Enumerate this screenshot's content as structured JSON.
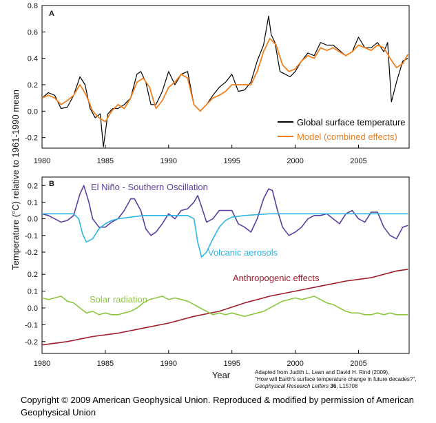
{
  "chart_data": [
    {
      "panel": "A",
      "type": "line",
      "ylabel": "Temperature (°C) relative to 1961-1990 mean",
      "xlabel": "",
      "xlim": [
        1980,
        2009
      ],
      "ylim": [
        -0.28,
        0.8
      ],
      "xticks": [
        1980,
        1985,
        1990,
        1995,
        2000,
        2005
      ],
      "yticks": [
        -0.2,
        0.0,
        0.2,
        0.4,
        0.6,
        0.8
      ],
      "ytick_labels": [
        "-0.2",
        "0.0",
        "0.2",
        "0.4",
        "0.6",
        "0.8"
      ],
      "legend_position": "bottom-right",
      "series": [
        {
          "name": "Global surface temperature",
          "color": "#000000",
          "x": [
            1980.0,
            1980.5,
            1981.0,
            1981.5,
            1982.0,
            1982.5,
            1983.0,
            1983.4,
            1983.8,
            1984.2,
            1984.6,
            1984.85,
            1985.2,
            1985.6,
            1986.0,
            1986.5,
            1987.0,
            1987.5,
            1987.8,
            1988.2,
            1988.6,
            1989.0,
            1989.5,
            1990.0,
            1990.5,
            1991.0,
            1991.5,
            1992.0,
            1992.5,
            1993.0,
            1993.5,
            1994.0,
            1994.5,
            1995.0,
            1995.5,
            1996.0,
            1996.5,
            1997.0,
            1997.5,
            1997.9,
            1998.1,
            1998.4,
            1998.8,
            1999.2,
            1999.6,
            2000.0,
            2000.5,
            2001.0,
            2001.5,
            2002.0,
            2002.5,
            2003.0,
            2003.5,
            2004.0,
            2004.5,
            2005.0,
            2005.5,
            2006.0,
            2006.5,
            2007.0,
            2007.3,
            2007.6,
            2008.0,
            2008.5,
            2008.9
          ],
          "values": [
            0.1,
            0.14,
            0.12,
            0.02,
            0.03,
            0.12,
            0.26,
            0.2,
            0.02,
            -0.05,
            -0.02,
            -0.27,
            -0.02,
            0.02,
            0.02,
            0.05,
            0.1,
            0.28,
            0.3,
            0.22,
            0.05,
            0.05,
            0.15,
            0.3,
            0.2,
            0.28,
            0.3,
            0.05,
            0.0,
            0.05,
            0.12,
            0.18,
            0.22,
            0.28,
            0.15,
            0.16,
            0.22,
            0.38,
            0.5,
            0.72,
            0.58,
            0.52,
            0.3,
            0.28,
            0.26,
            0.3,
            0.38,
            0.44,
            0.42,
            0.52,
            0.5,
            0.5,
            0.46,
            0.42,
            0.45,
            0.56,
            0.48,
            0.48,
            0.52,
            0.45,
            0.52,
            0.07,
            0.22,
            0.38,
            0.4
          ]
        },
        {
          "name": "Model (combined effects)",
          "color": "#f07f1d",
          "x": [
            1980.0,
            1980.5,
            1981.0,
            1981.5,
            1982.0,
            1982.5,
            1983.0,
            1983.5,
            1984.0,
            1984.5,
            1985.0,
            1985.5,
            1986.0,
            1986.5,
            1987.0,
            1987.5,
            1988.0,
            1988.5,
            1989.0,
            1989.5,
            1990.0,
            1990.5,
            1991.0,
            1991.5,
            1992.0,
            1992.5,
            1993.0,
            1993.5,
            1994.0,
            1994.5,
            1995.0,
            1995.5,
            1996.0,
            1996.5,
            1997.0,
            1997.5,
            1998.0,
            1998.5,
            1999.0,
            1999.5,
            2000.0,
            2000.5,
            2001.0,
            2001.5,
            2002.0,
            2002.5,
            2003.0,
            2003.5,
            2004.0,
            2004.5,
            2005.0,
            2005.5,
            2006.0,
            2006.5,
            2007.0,
            2007.5,
            2008.0,
            2008.5,
            2008.9
          ],
          "values": [
            0.1,
            0.12,
            0.1,
            0.05,
            0.08,
            0.12,
            0.2,
            0.12,
            0.0,
            -0.05,
            -0.08,
            0.0,
            0.05,
            0.02,
            0.1,
            0.22,
            0.25,
            0.18,
            0.02,
            0.08,
            0.18,
            0.22,
            0.28,
            0.25,
            0.05,
            0.0,
            0.05,
            0.1,
            0.12,
            0.15,
            0.2,
            0.2,
            0.2,
            0.2,
            0.3,
            0.45,
            0.55,
            0.5,
            0.35,
            0.3,
            0.32,
            0.38,
            0.42,
            0.4,
            0.48,
            0.46,
            0.48,
            0.45,
            0.42,
            0.45,
            0.5,
            0.48,
            0.46,
            0.5,
            0.48,
            0.4,
            0.33,
            0.36,
            0.43
          ]
        }
      ]
    },
    {
      "panel": "B",
      "type": "line",
      "xlabel": "Year",
      "xlim": [
        1980,
        2009
      ],
      "ylim_upper": [
        -0.25,
        0.23
      ],
      "ylim_lower": [
        -0.25,
        0.25
      ],
      "xticks": [
        1980,
        1985,
        1990,
        1995,
        2000,
        2005
      ],
      "yticks_upper": [
        -0.2,
        -0.1,
        0.0,
        0.1,
        0.2
      ],
      "yticks_upper_labels": [
        "-0.2",
        "-0.1",
        "0.0",
        "0.1",
        "0.2"
      ],
      "yticks_lower": [
        -0.2,
        -0.1,
        0.0,
        0.1,
        0.2
      ],
      "yticks_lower_labels": [
        "-0.2",
        "-0.1",
        "0.0",
        "0.1",
        "0.2"
      ],
      "series": [
        {
          "name": "El Niño - Southern Oscillation",
          "color": "#5b3fa0",
          "subplot": "upper",
          "x": [
            1980.0,
            1980.5,
            1981.0,
            1981.5,
            1982.0,
            1982.5,
            1983.0,
            1983.3,
            1983.7,
            1984.0,
            1984.5,
            1985.0,
            1985.5,
            1986.0,
            1986.5,
            1987.0,
            1987.3,
            1987.8,
            1988.2,
            1988.6,
            1989.0,
            1989.5,
            1990.0,
            1990.5,
            1991.0,
            1991.5,
            1992.0,
            1992.3,
            1992.7,
            1993.0,
            1993.5,
            1994.0,
            1994.5,
            1995.0,
            1995.5,
            1996.0,
            1996.5,
            1997.0,
            1997.5,
            1997.9,
            1998.2,
            1998.6,
            1999.0,
            1999.5,
            2000.0,
            2000.5,
            2001.0,
            2001.5,
            2002.0,
            2002.5,
            2003.0,
            2003.5,
            2004.0,
            2004.5,
            2005.0,
            2005.5,
            2006.0,
            2006.5,
            2007.0,
            2007.5,
            2008.0,
            2008.5,
            2008.9
          ],
          "values": [
            0.03,
            0.02,
            0.0,
            -0.02,
            -0.01,
            0.02,
            0.15,
            0.2,
            0.1,
            0.0,
            -0.05,
            -0.05,
            -0.02,
            0.0,
            0.05,
            0.12,
            0.12,
            0.05,
            -0.06,
            -0.1,
            -0.08,
            -0.03,
            0.03,
            0.0,
            0.05,
            0.06,
            0.1,
            0.14,
            0.05,
            -0.02,
            0.0,
            0.05,
            0.05,
            0.05,
            -0.03,
            -0.05,
            -0.08,
            0.0,
            0.12,
            0.18,
            0.17,
            0.05,
            -0.05,
            -0.1,
            -0.08,
            -0.05,
            0.0,
            0.02,
            0.02,
            0.03,
            0.0,
            -0.03,
            0.03,
            0.05,
            0.0,
            -0.02,
            0.04,
            0.04,
            -0.05,
            -0.1,
            -0.12,
            -0.05,
            -0.04
          ]
        },
        {
          "name": "Volcanic aerosols",
          "color": "#2bb6e6",
          "subplot": "upper",
          "x": [
            1980.0,
            1982.5,
            1982.9,
            1983.2,
            1983.5,
            1984.0,
            1984.5,
            1985.0,
            1985.5,
            1986.0,
            1987.0,
            1988.0,
            1989.0,
            1990.0,
            1991.0,
            1991.5,
            1992.0,
            1992.3,
            1992.6,
            1993.0,
            1993.5,
            1994.0,
            1994.5,
            1995.0,
            1996.0,
            1998.0,
            2000.0,
            2002.0,
            2004.0,
            2006.0,
            2008.0,
            2008.9
          ],
          "values": [
            0.03,
            0.03,
            0.0,
            -0.09,
            -0.14,
            -0.12,
            -0.06,
            -0.03,
            -0.01,
            0.0,
            0.01,
            0.02,
            0.02,
            0.02,
            0.02,
            0.02,
            0.0,
            -0.14,
            -0.23,
            -0.2,
            -0.12,
            -0.05,
            -0.01,
            0.01,
            0.02,
            0.03,
            0.03,
            0.03,
            0.03,
            0.03,
            0.03,
            0.03
          ]
        },
        {
          "name": "Anthropogenic effects",
          "color": "#a01c2c",
          "subplot": "lower",
          "x": [
            1980.0,
            1982.0,
            1984.0,
            1986.0,
            1988.0,
            1990.0,
            1992.0,
            1994.0,
            1996.0,
            1998.0,
            2000.0,
            2002.0,
            2004.0,
            2006.0,
            2008.0,
            2008.9
          ],
          "values": [
            -0.22,
            -0.2,
            -0.17,
            -0.15,
            -0.12,
            -0.09,
            -0.05,
            -0.02,
            0.03,
            0.07,
            0.1,
            0.13,
            0.16,
            0.18,
            0.22,
            0.23
          ]
        },
        {
          "name": "Solar radiation",
          "color": "#8dc63f",
          "subplot": "lower",
          "x": [
            1980.0,
            1980.5,
            1981.0,
            1981.5,
            1982.0,
            1982.5,
            1983.0,
            1983.5,
            1984.0,
            1984.5,
            1985.0,
            1985.5,
            1986.0,
            1986.5,
            1987.0,
            1987.5,
            1988.0,
            1988.5,
            1989.0,
            1989.5,
            1990.0,
            1990.5,
            1991.0,
            1991.5,
            1992.0,
            1992.5,
            1993.0,
            1993.5,
            1994.0,
            1994.5,
            1995.0,
            1995.5,
            1996.0,
            1996.5,
            1997.0,
            1997.5,
            1998.0,
            1998.5,
            1999.0,
            1999.5,
            2000.0,
            2000.5,
            2001.0,
            2001.5,
            2002.0,
            2002.5,
            2003.0,
            2003.5,
            2004.0,
            2004.5,
            2005.0,
            2005.5,
            2006.0,
            2006.5,
            2007.0,
            2007.5,
            2008.0,
            2008.5,
            2008.9
          ],
          "values": [
            0.06,
            0.05,
            0.06,
            0.07,
            0.04,
            0.03,
            0.0,
            -0.03,
            -0.02,
            -0.04,
            -0.03,
            -0.04,
            -0.04,
            -0.03,
            -0.02,
            0.0,
            0.03,
            0.05,
            0.06,
            0.07,
            0.05,
            0.06,
            0.05,
            0.04,
            0.02,
            0.0,
            -0.02,
            -0.04,
            -0.03,
            -0.04,
            -0.03,
            -0.04,
            -0.05,
            -0.04,
            -0.03,
            -0.02,
            0.0,
            0.02,
            0.04,
            0.05,
            0.06,
            0.05,
            0.06,
            0.07,
            0.05,
            0.03,
            0.02,
            0.0,
            -0.02,
            -0.03,
            -0.03,
            -0.04,
            -0.04,
            -0.03,
            -0.04,
            -0.03,
            -0.04,
            -0.04,
            -0.04
          ]
        }
      ]
    }
  ],
  "labels": {
    "panel_a": "A",
    "panel_b": "B",
    "ylabel": "Temperature (°C) relative to 1961-1990 mean",
    "xlabel": "Year",
    "legend_global": "Global surface temperature",
    "legend_model": "Model (combined effects)",
    "annot_enso": "El Niño - Southern Oscillation",
    "annot_volcanic": "Volcanic aerosols",
    "annot_anthro": "Anthropogenic effects",
    "annot_solar": "Solar radiation"
  },
  "citation": {
    "line1": "Adapted from Judith L. Lean and David H. Rind (2009),",
    "line2": "\"How will Earth's surface temperature change in future decades?\",",
    "journal": "Geophysical Research Letters",
    "volume": "36",
    "page": ", L15708"
  },
  "copyright": "Copyright © 2009 American Geophysical Union. Reproduced & modified by permission of American Geophysical Union"
}
